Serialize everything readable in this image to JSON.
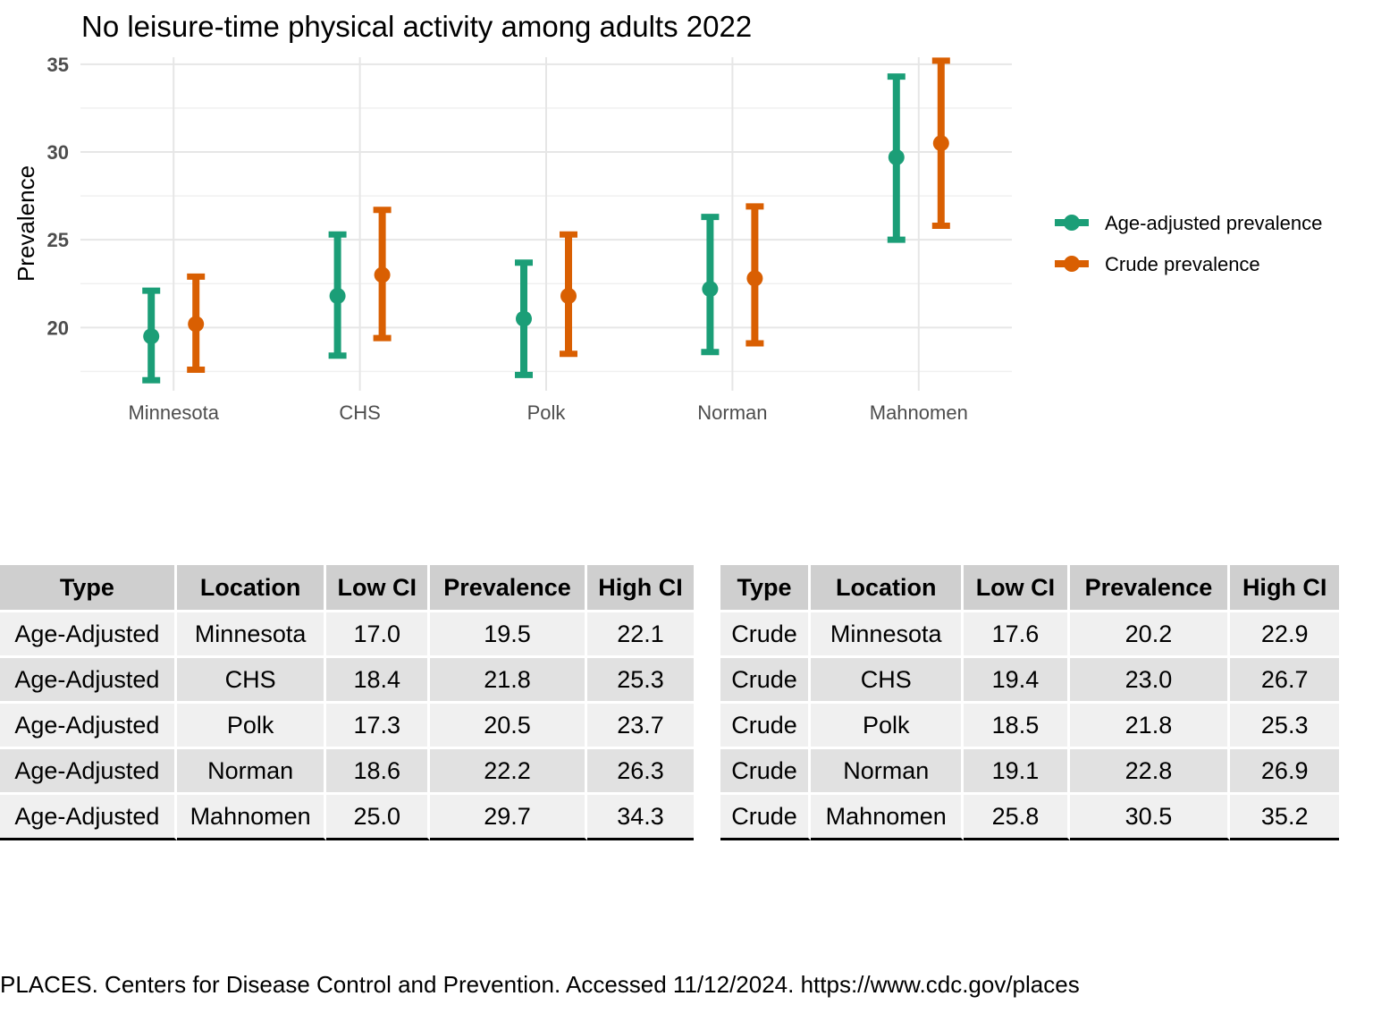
{
  "chart_data": {
    "type": "errorbar",
    "title": "No leisure-time physical activity among adults 2022",
    "xlabel": "",
    "ylabel": "Prevalence",
    "categories": [
      "Minnesota",
      "CHS",
      "Polk",
      "Norman",
      "Mahnomen"
    ],
    "ylim": [
      16.4,
      35.4
    ],
    "yticks": [
      20,
      25,
      30,
      35
    ],
    "grid": true,
    "legend_position": "right",
    "series": [
      {
        "name": "Age-adjusted prevalence",
        "color": "#1b9e77",
        "values": [
          19.5,
          21.8,
          20.5,
          22.2,
          29.7
        ],
        "low": [
          17.0,
          18.4,
          17.3,
          18.6,
          25.0
        ],
        "high": [
          22.1,
          25.3,
          23.7,
          26.3,
          34.3
        ]
      },
      {
        "name": "Crude prevalence",
        "color": "#d95f02",
        "values": [
          20.2,
          23.0,
          21.8,
          22.8,
          30.5
        ],
        "low": [
          17.6,
          19.4,
          18.5,
          19.1,
          25.8
        ],
        "high": [
          22.9,
          26.7,
          25.3,
          26.9,
          35.2
        ]
      }
    ]
  },
  "tables": {
    "headers": [
      "Type",
      "Location",
      "Low CI",
      "Prevalence",
      "High CI"
    ],
    "left_rows": [
      [
        "Age-Adjusted",
        "Minnesota",
        "17.0",
        "19.5",
        "22.1"
      ],
      [
        "Age-Adjusted",
        "CHS",
        "18.4",
        "21.8",
        "25.3"
      ],
      [
        "Age-Adjusted",
        "Polk",
        "17.3",
        "20.5",
        "23.7"
      ],
      [
        "Age-Adjusted",
        "Norman",
        "18.6",
        "22.2",
        "26.3"
      ],
      [
        "Age-Adjusted",
        "Mahnomen",
        "25.0",
        "29.7",
        "34.3"
      ]
    ],
    "right_rows": [
      [
        "Crude",
        "Minnesota",
        "17.6",
        "20.2",
        "22.9"
      ],
      [
        "Crude",
        "CHS",
        "19.4",
        "23.0",
        "26.7"
      ],
      [
        "Crude",
        "Polk",
        "18.5",
        "21.8",
        "25.3"
      ],
      [
        "Crude",
        "Norman",
        "19.1",
        "22.8",
        "26.9"
      ],
      [
        "Crude",
        "Mahnomen",
        "25.8",
        "30.5",
        "35.2"
      ]
    ]
  },
  "source": "PLACES. Centers for Disease Control and Prevention. Accessed 11/12/2024. https://www.cdc.gov/places"
}
